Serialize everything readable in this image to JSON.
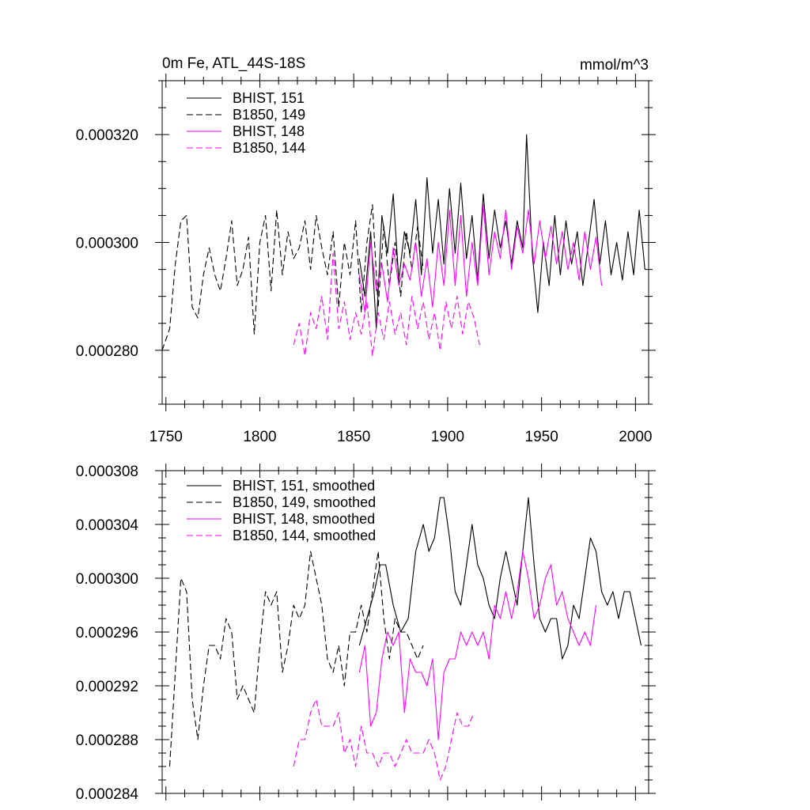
{
  "chart_data": [
    {
      "type": "line",
      "title": "0m Fe, ATL_44S-18S",
      "units": "mmol/m^3",
      "xlim": [
        1748,
        2007
      ],
      "ylim": [
        0.00027,
        0.00033
      ],
      "x_ticks": [
        "1750",
        "1800",
        "1850",
        "1900",
        "1950",
        "2000"
      ],
      "y_ticks": [
        "0.000280",
        "0.000300",
        "0.000320"
      ],
      "series": [
        {
          "name": "BHIST, 151",
          "color": "#000000",
          "dash": "solid",
          "x": [
            1853,
            1856,
            1859,
            1862,
            1865,
            1868,
            1871,
            1874,
            1877,
            1880,
            1883,
            1886,
            1889,
            1892,
            1895,
            1898,
            1901,
            1904,
            1907,
            1910,
            1913,
            1916,
            1919,
            1922,
            1925,
            1928,
            1931,
            1934,
            1937,
            1940,
            1942,
            1945,
            1948,
            1951,
            1954,
            1957,
            1960,
            1963,
            1966,
            1969,
            1972,
            1975,
            1978,
            1981,
            1984,
            1987,
            1990,
            1993,
            1996,
            1999,
            2002,
            2005
          ],
          "values": [
            0.000297,
            0.00029,
            0.000302,
            0.000284,
            0.000305,
            0.000298,
            0.000309,
            0.000293,
            0.000302,
            0.000298,
            0.000308,
            0.000294,
            0.000312,
            0.000298,
            0.000308,
            0.000296,
            0.00031,
            0.000298,
            0.000311,
            0.000297,
            0.000305,
            0.000293,
            0.000309,
            0.000297,
            0.000306,
            0.000299,
            0.000304,
            0.000296,
            0.000304,
            0.000299,
            0.00032,
            0.000298,
            0.000287,
            0.0003,
            0.000292,
            0.000305,
            0.000294,
            0.000304,
            0.000296,
            0.000302,
            0.000292,
            0.0003,
            0.000308,
            0.000296,
            0.000304,
            0.000294,
            0.0003,
            0.000293,
            0.000302,
            0.000294,
            0.000306,
            0.000295
          ]
        },
        {
          "name": "B1850, 149",
          "color": "#000000",
          "dash": "dashed",
          "x": [
            1748,
            1752,
            1755,
            1758,
            1761,
            1764,
            1767,
            1770,
            1773,
            1776,
            1779,
            1782,
            1785,
            1788,
            1791,
            1794,
            1797,
            1800,
            1803,
            1806,
            1809,
            1812,
            1815,
            1818,
            1821,
            1824,
            1827,
            1830,
            1833,
            1836,
            1839,
            1842,
            1845,
            1848,
            1851,
            1854,
            1857,
            1860,
            1863,
            1866,
            1869,
            1872,
            1875,
            1878,
            1881,
            1884,
            1887
          ],
          "values": [
            0.00028,
            0.000284,
            0.000296,
            0.000304,
            0.000305,
            0.000288,
            0.000286,
            0.000294,
            0.000299,
            0.000294,
            0.000291,
            0.000297,
            0.000304,
            0.000292,
            0.000295,
            0.000301,
            0.000283,
            0.0003,
            0.000305,
            0.000291,
            0.000306,
            0.000294,
            0.000302,
            0.000297,
            0.000299,
            0.000304,
            0.000295,
            0.000305,
            0.000299,
            0.000294,
            0.000302,
            0.000288,
            0.0003,
            0.000294,
            0.000304,
            0.000287,
            0.0003,
            0.000307,
            0.000288,
            0.000303,
            0.000292,
            0.0003,
            0.00029,
            0.000302,
            0.000295,
            0.000303,
            0.000295
          ]
        },
        {
          "name": "BHIST, 148",
          "color": "#ff00ff",
          "dash": "solid",
          "x": [
            1853,
            1856,
            1859,
            1862,
            1865,
            1868,
            1871,
            1874,
            1877,
            1880,
            1883,
            1886,
            1889,
            1892,
            1895,
            1898,
            1901,
            1904,
            1907,
            1910,
            1913,
            1916,
            1919,
            1922,
            1925,
            1928,
            1931,
            1934,
            1937,
            1940,
            1943,
            1946,
            1949,
            1952,
            1955,
            1958,
            1961,
            1964,
            1967,
            1970,
            1973,
            1976,
            1979,
            1982
          ],
          "values": [
            0.000294,
            0.000287,
            0.0003,
            0.000291,
            0.000296,
            0.000289,
            0.000299,
            0.000292,
            0.000296,
            0.000293,
            0.0003,
            0.00029,
            0.000297,
            0.000288,
            0.0003,
            0.000292,
            0.000306,
            0.000292,
            0.000305,
            0.00029,
            0.0003,
            0.000292,
            0.000307,
            0.000294,
            0.000302,
            0.000297,
            0.000306,
            0.000295,
            0.000303,
            0.000298,
            0.000306,
            0.000296,
            0.000304,
            0.000297,
            0.000303,
            0.000296,
            0.000302,
            0.000295,
            0.0003,
            0.000293,
            0.000302,
            0.000295,
            0.000301,
            0.000292
          ]
        },
        {
          "name": "B1850, 144",
          "color": "#ff00ff",
          "dash": "dashed",
          "x": [
            1818,
            1821,
            1824,
            1827,
            1830,
            1833,
            1836,
            1839,
            1842,
            1845,
            1848,
            1851,
            1854,
            1857,
            1860,
            1863,
            1866,
            1869,
            1872,
            1875,
            1878,
            1881,
            1884,
            1887,
            1890,
            1893,
            1896,
            1899,
            1902,
            1905,
            1908,
            1911,
            1914,
            1917
          ],
          "values": [
            0.000281,
            0.000285,
            0.000279,
            0.000287,
            0.000284,
            0.00029,
            0.000282,
            0.000298,
            0.000284,
            0.000289,
            0.000282,
            0.000287,
            0.000283,
            0.000289,
            0.000279,
            0.000287,
            0.000282,
            0.000289,
            0.000283,
            0.000287,
            0.000281,
            0.00029,
            0.000284,
            0.000289,
            0.000282,
            0.000287,
            0.00028,
            0.000289,
            0.000284,
            0.00029,
            0.000283,
            0.000289,
            0.000286,
            0.000281
          ]
        }
      ]
    },
    {
      "type": "line",
      "title": "",
      "xlim": [
        1748,
        2007
      ],
      "ylim": [
        0.000284,
        0.000308
      ],
      "y_ticks": [
        "0.000284",
        "0.000288",
        "0.000292",
        "0.000296",
        "0.000300",
        "0.000304",
        "0.000308"
      ],
      "series": [
        {
          "name": "BHIST, 151, smoothed",
          "color": "#000000",
          "dash": "solid",
          "x": [
            1853,
            1857,
            1861,
            1864,
            1867,
            1871,
            1875,
            1879,
            1883,
            1887,
            1890,
            1893,
            1896,
            1898,
            1901,
            1904,
            1907,
            1910,
            1913,
            1916,
            1919,
            1922,
            1925,
            1928,
            1931,
            1934,
            1937,
            1940,
            1943,
            1946,
            1949,
            1952,
            1955,
            1958,
            1961,
            1964,
            1967,
            1970,
            1973,
            1976,
            1979,
            1982,
            1985,
            1988,
            1991,
            1994,
            1997,
            2000,
            2003
          ],
          "values": [
            0.000295,
            0.000297,
            0.000299,
            0.000301,
            0.000301,
            0.000298,
            0.000296,
            0.000297,
            0.000302,
            0.000304,
            0.000302,
            0.000303,
            0.000306,
            0.000306,
            0.000303,
            0.000299,
            0.000298,
            0.000301,
            0.000304,
            0.000301,
            0.0003,
            0.000298,
            0.000297,
            0.0003,
            0.000302,
            0.0003,
            0.000298,
            0.000302,
            0.000306,
            0.000301,
            0.000297,
            0.000296,
            0.000297,
            0.000297,
            0.000294,
            0.000295,
            0.000298,
            0.000297,
            0.0003,
            0.000303,
            0.000302,
            0.000299,
            0.000298,
            0.000299,
            0.000297,
            0.000299,
            0.000299,
            0.000297,
            0.000295
          ]
        },
        {
          "name": "B1850, 149, smoothed",
          "color": "#000000",
          "dash": "dashed",
          "x": [
            1752,
            1755,
            1758,
            1761,
            1764,
            1767,
            1770,
            1773,
            1776,
            1779,
            1782,
            1785,
            1788,
            1791,
            1794,
            1797,
            1800,
            1803,
            1806,
            1809,
            1812,
            1815,
            1818,
            1821,
            1824,
            1827,
            1830,
            1833,
            1836,
            1839,
            1842,
            1845,
            1848,
            1851,
            1854,
            1857,
            1860,
            1863,
            1866,
            1869,
            1872,
            1875,
            1878,
            1881,
            1884,
            1887
          ],
          "values": [
            0.000286,
            0.000293,
            0.0003,
            0.000299,
            0.000291,
            0.000288,
            0.000292,
            0.000295,
            0.000295,
            0.000294,
            0.000297,
            0.000296,
            0.000291,
            0.000292,
            0.000291,
            0.00029,
            0.000295,
            0.000299,
            0.000298,
            0.000299,
            0.000293,
            0.000295,
            0.000298,
            0.000297,
            0.000298,
            0.000302,
            0.0003,
            0.000298,
            0.000294,
            0.000293,
            0.000295,
            0.000292,
            0.000296,
            0.000296,
            0.000298,
            0.000296,
            0.000299,
            0.000302,
            0.000297,
            0.000294,
            0.000297,
            0.000296,
            0.000296,
            0.000295,
            0.000294,
            0.000295
          ]
        },
        {
          "name": "BHIST, 148, smoothed",
          "color": "#ff00ff",
          "dash": "solid",
          "x": [
            1853,
            1856,
            1859,
            1862,
            1865,
            1868,
            1871,
            1874,
            1877,
            1880,
            1883,
            1886,
            1889,
            1892,
            1895,
            1898,
            1901,
            1904,
            1907,
            1910,
            1913,
            1916,
            1919,
            1922,
            1925,
            1928,
            1931,
            1934,
            1937,
            1940,
            1943,
            1946,
            1949,
            1952,
            1955,
            1958,
            1961,
            1964,
            1967,
            1970,
            1973,
            1976,
            1979
          ],
          "values": [
            0.000293,
            0.000295,
            0.000289,
            0.00029,
            0.000294,
            0.000296,
            0.000295,
            0.000296,
            0.00029,
            0.000294,
            0.000293,
            0.000293,
            0.000292,
            0.000294,
            0.000288,
            0.000293,
            0.000294,
            0.000294,
            0.000296,
            0.000295,
            0.000296,
            0.000295,
            0.000296,
            0.000294,
            0.000298,
            0.000297,
            0.000299,
            0.000297,
            0.000299,
            0.000302,
            0.0003,
            0.000297,
            0.000298,
            0.0003,
            0.000301,
            0.000298,
            0.000299,
            0.000297,
            0.000296,
            0.000295,
            0.000296,
            0.000295,
            0.000298
          ]
        },
        {
          "name": "B1850, 144, smoothed",
          "color": "#ff00ff",
          "dash": "dashed",
          "x": [
            1818,
            1821,
            1824,
            1827,
            1830,
            1833,
            1836,
            1839,
            1842,
            1845,
            1848,
            1851,
            1854,
            1857,
            1860,
            1863,
            1866,
            1869,
            1872,
            1875,
            1878,
            1881,
            1884,
            1887,
            1890,
            1893,
            1896,
            1899,
            1902,
            1905,
            1908,
            1911,
            1914
          ],
          "values": [
            0.000286,
            0.000288,
            0.000288,
            0.00029,
            0.000291,
            0.000289,
            0.000289,
            0.000289,
            0.00029,
            0.000287,
            0.000288,
            0.000286,
            0.000289,
            0.000287,
            0.000287,
            0.000286,
            0.000287,
            0.000287,
            0.000286,
            0.000287,
            0.000288,
            0.000287,
            0.000287,
            0.000287,
            0.000288,
            0.000287,
            0.000285,
            0.000286,
            0.000288,
            0.00029,
            0.000289,
            0.000289,
            0.00029
          ]
        }
      ]
    }
  ]
}
